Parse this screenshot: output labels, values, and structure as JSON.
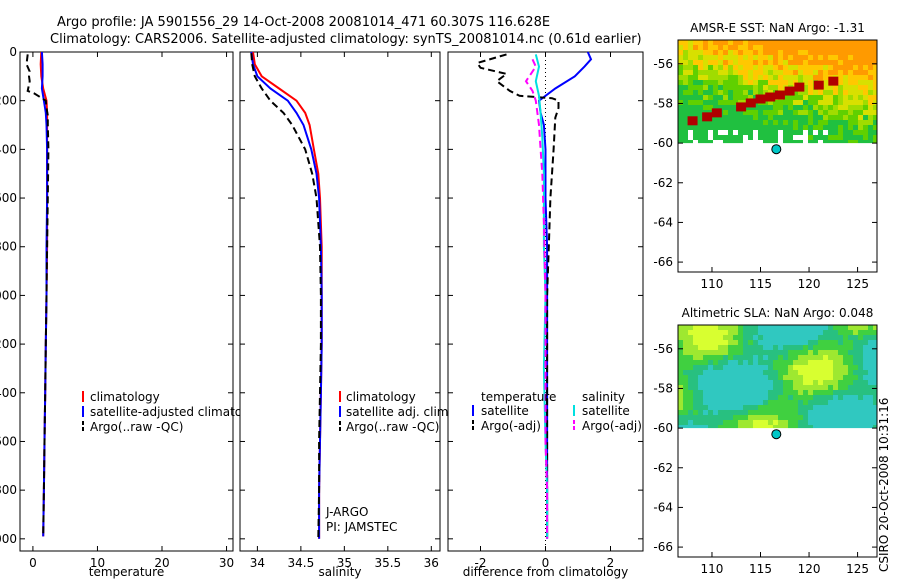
{
  "title_line1": "Argo profile: JA 5901556_29 14-Oct-2008 20081014_471 60.307S 116.628E",
  "title_line2": "Climatology: CARS2006. Satellite-adjusted climatology: synTS_20081014.nc (0.61d earlier)",
  "side_text": "CSIRO 20-Oct-2008 10:31:16",
  "colors": {
    "climatology": "#ff0000",
    "satellite": "#0000ff",
    "argo": "#000000",
    "cyan": "#00e0e0",
    "magenta": "#ff00ff",
    "float_marker": "#00c8c8"
  },
  "chart_data": [
    {
      "type": "line",
      "id": "temperature",
      "xlabel": "temperature",
      "xlim": [
        -2,
        31
      ],
      "ylim": [
        0,
        2050
      ],
      "y_reversed": true,
      "x_ticks": [
        0,
        10,
        20,
        30
      ],
      "y_ticks": [
        0,
        200,
        400,
        600,
        800,
        1000,
        1200,
        1400,
        1600,
        1800,
        2000
      ],
      "legend": [
        "climatology",
        "satellite-adjusted climatology",
        "Argo(..raw -QC)"
      ],
      "series": [
        {
          "name": "climatology",
          "style": "solid",
          "color": "#ff0000",
          "points": [
            [
              1.3,
              0
            ],
            [
              1.2,
              50
            ],
            [
              1.3,
              100
            ],
            [
              1.6,
              150
            ],
            [
              2.1,
              200
            ],
            [
              2.2,
              250
            ],
            [
              2.2,
              300
            ],
            [
              2.2,
              400
            ],
            [
              2.2,
              600
            ],
            [
              2.2,
              800
            ],
            [
              2.1,
              1000
            ],
            [
              2.0,
              1200
            ],
            [
              1.9,
              1400
            ],
            [
              1.8,
              1600
            ],
            [
              1.7,
              1800
            ],
            [
              1.6,
              1990
            ]
          ]
        },
        {
          "name": "satellite-adjusted climatology",
          "style": "solid",
          "color": "#0000ff",
          "points": [
            [
              1.4,
              0
            ],
            [
              1.5,
              50
            ],
            [
              1.5,
              100
            ],
            [
              1.4,
              150
            ],
            [
              1.7,
              200
            ],
            [
              2.0,
              250
            ],
            [
              2.1,
              300
            ],
            [
              2.2,
              400
            ],
            [
              2.2,
              600
            ],
            [
              2.1,
              800
            ],
            [
              2.1,
              1000
            ],
            [
              2.0,
              1200
            ],
            [
              1.9,
              1400
            ],
            [
              1.8,
              1600
            ],
            [
              1.7,
              1800
            ],
            [
              1.6,
              1990
            ]
          ]
        },
        {
          "name": "Argo(..raw -QC)",
          "style": "dashed",
          "color": "#000000",
          "points": [
            [
              -0.8,
              10
            ],
            [
              -1.0,
              50
            ],
            [
              -0.5,
              80
            ],
            [
              -0.6,
              100
            ],
            [
              -0.5,
              120
            ],
            [
              -0.8,
              160
            ],
            [
              0.2,
              170
            ],
            [
              1.4,
              190
            ],
            [
              2.0,
              200
            ],
            [
              2.1,
              230
            ],
            [
              2.3,
              260
            ],
            [
              2.3,
              300
            ],
            [
              2.4,
              400
            ],
            [
              2.3,
              600
            ],
            [
              2.2,
              800
            ],
            [
              2.1,
              1000
            ],
            [
              2.0,
              1200
            ],
            [
              1.9,
              1400
            ],
            [
              1.8,
              1600
            ],
            [
              1.7,
              1800
            ],
            [
              1.6,
              1990
            ]
          ]
        }
      ]
    },
    {
      "type": "line",
      "id": "salinity",
      "xlabel": "salinity",
      "xlim": [
        33.8,
        36.1
      ],
      "ylim": [
        0,
        2050
      ],
      "y_reversed": true,
      "x_ticks": [
        34,
        34.5,
        35,
        35.5,
        36
      ],
      "x_tick_labels": [
        "34",
        "34.5",
        "35",
        "35.5",
        "36"
      ],
      "legend": [
        "climatology",
        "satellite adj. clim.",
        "Argo(..raw -QC)"
      ],
      "annotations": [
        "J-ARGO",
        "PI: JAMSTEC"
      ],
      "series": [
        {
          "name": "climatology",
          "style": "solid",
          "color": "#ff0000",
          "points": [
            [
              33.95,
              0
            ],
            [
              33.97,
              50
            ],
            [
              34.05,
              100
            ],
            [
              34.25,
              150
            ],
            [
              34.45,
              200
            ],
            [
              34.55,
              250
            ],
            [
              34.6,
              300
            ],
            [
              34.65,
              400
            ],
            [
              34.7,
              500
            ],
            [
              34.72,
              600
            ],
            [
              34.74,
              800
            ],
            [
              34.74,
              1000
            ],
            [
              34.74,
              1200
            ],
            [
              34.73,
              1400
            ],
            [
              34.72,
              1600
            ],
            [
              34.71,
              1800
            ],
            [
              34.71,
              2000
            ]
          ]
        },
        {
          "name": "satellite adj. clim.",
          "style": "solid",
          "color": "#0000ff",
          "points": [
            [
              33.93,
              0
            ],
            [
              33.95,
              50
            ],
            [
              34.0,
              100
            ],
            [
              34.15,
              150
            ],
            [
              34.35,
              200
            ],
            [
              34.45,
              250
            ],
            [
              34.53,
              300
            ],
            [
              34.62,
              400
            ],
            [
              34.68,
              500
            ],
            [
              34.71,
              600
            ],
            [
              34.73,
              800
            ],
            [
              34.74,
              1000
            ],
            [
              34.74,
              1200
            ],
            [
              34.73,
              1400
            ],
            [
              34.72,
              1600
            ],
            [
              34.71,
              1800
            ],
            [
              34.71,
              2000
            ]
          ]
        },
        {
          "name": "Argo(..raw -QC)",
          "style": "dashed",
          "color": "#000000",
          "points": [
            [
              33.93,
              5
            ],
            [
              33.94,
              50
            ],
            [
              33.97,
              100
            ],
            [
              34.05,
              150
            ],
            [
              34.15,
              200
            ],
            [
              34.3,
              250
            ],
            [
              34.4,
              300
            ],
            [
              34.55,
              400
            ],
            [
              34.63,
              500
            ],
            [
              34.68,
              600
            ],
            [
              34.72,
              800
            ],
            [
              34.73,
              1000
            ],
            [
              34.73,
              1200
            ],
            [
              34.72,
              1400
            ],
            [
              34.71,
              1600
            ],
            [
              34.71,
              1800
            ],
            [
              34.7,
              2000
            ]
          ]
        }
      ]
    },
    {
      "type": "line",
      "id": "difference",
      "xlabel": "difference from climatology",
      "xlim": [
        -3,
        3
      ],
      "ylim": [
        0,
        2050
      ],
      "y_reversed": true,
      "x_ticks": [
        -2,
        0,
        2
      ],
      "legend": [
        "temperature",
        "satellite",
        "Argo(-adj)",
        "salinity",
        "satellite",
        "Argo(-adj)"
      ],
      "series": [
        {
          "name": "satellite",
          "group": "temperature",
          "style": "solid",
          "color": "#0000ff",
          "points": [
            [
              1.3,
              0
            ],
            [
              1.4,
              30
            ],
            [
              1.2,
              60
            ],
            [
              0.9,
              100
            ],
            [
              0.3,
              150
            ],
            [
              -0.2,
              200
            ],
            [
              -0.15,
              250
            ],
            [
              -0.05,
              300
            ],
            [
              0.0,
              400
            ],
            [
              0.0,
              600
            ],
            [
              0.05,
              800
            ],
            [
              0.05,
              1000
            ],
            [
              0.05,
              1200
            ],
            [
              0.05,
              1400
            ],
            [
              0.05,
              1600
            ],
            [
              0.05,
              1800
            ],
            [
              0.05,
              2000
            ]
          ]
        },
        {
          "name": "Argo(-adj)",
          "group": "temperature",
          "style": "dashed",
          "color": "#000000",
          "points": [
            [
              -1.2,
              10
            ],
            [
              -2.1,
              45
            ],
            [
              -2.0,
              65
            ],
            [
              -1.2,
              90
            ],
            [
              -1.5,
              120
            ],
            [
              -1.1,
              160
            ],
            [
              -0.8,
              180
            ],
            [
              0.2,
              190
            ],
            [
              0.4,
              200
            ],
            [
              0.4,
              230
            ],
            [
              0.3,
              270
            ],
            [
              0.25,
              400
            ],
            [
              0.15,
              600
            ],
            [
              0.1,
              800
            ],
            [
              0.05,
              1000
            ],
            [
              0.05,
              1200
            ],
            [
              0.05,
              1400
            ],
            [
              0.05,
              1600
            ],
            [
              0.05,
              1800
            ],
            [
              0.05,
              2000
            ]
          ]
        },
        {
          "name": "satellite",
          "group": "salinity",
          "style": "solid",
          "color": "#00e0e0",
          "points": [
            [
              -0.3,
              10
            ],
            [
              -0.2,
              60
            ],
            [
              -0.3,
              120
            ],
            [
              -0.2,
              180
            ],
            [
              -0.15,
              250
            ],
            [
              -0.1,
              350
            ],
            [
              -0.05,
              500
            ],
            [
              -0.05,
              800
            ],
            [
              0.0,
              1000
            ],
            [
              -0.05,
              1300
            ],
            [
              0.0,
              1600
            ],
            [
              0.05,
              1800
            ],
            [
              0.05,
              2000
            ]
          ]
        },
        {
          "name": "Argo(-adj)",
          "group": "salinity",
          "style": "dashed",
          "color": "#ff00ff",
          "points": [
            [
              -0.4,
              30
            ],
            [
              -0.3,
              60
            ],
            [
              -0.6,
              120
            ],
            [
              -0.4,
              160
            ],
            [
              -0.3,
              200
            ],
            [
              -0.2,
              300
            ],
            [
              -0.15,
              400
            ],
            [
              -0.1,
              500
            ],
            [
              -0.05,
              700
            ],
            [
              0.0,
              1000
            ],
            [
              0.0,
              1300
            ],
            [
              0.0,
              1600
            ],
            [
              0.05,
              1800
            ],
            [
              0.05,
              2000
            ]
          ]
        }
      ]
    },
    {
      "type": "heatmap",
      "id": "sst_map",
      "title": "AMSR-E SST: NaN Argo: -1.31",
      "xlim": [
        106.5,
        127
      ],
      "ylim": [
        -66.5,
        -54.8
      ],
      "x_ticks": [
        110,
        115,
        120,
        125
      ],
      "y_ticks": [
        -56,
        -58,
        -60,
        -62,
        -64,
        -66
      ],
      "float_position": {
        "lon": 116.628,
        "lat": -60.307
      },
      "data_extent_south": -60.0
    },
    {
      "type": "heatmap",
      "id": "sla_map",
      "title": "Altimetric SLA: NaN Argo: 0.048",
      "xlim": [
        106.5,
        127
      ],
      "ylim": [
        -66.5,
        -54.8
      ],
      "x_ticks": [
        110,
        115,
        120,
        125
      ],
      "y_ticks": [
        -56,
        -58,
        -60,
        -62,
        -64,
        -66
      ],
      "float_position": {
        "lon": 116.628,
        "lat": -60.307
      },
      "data_extent_south": -60.0
    }
  ]
}
